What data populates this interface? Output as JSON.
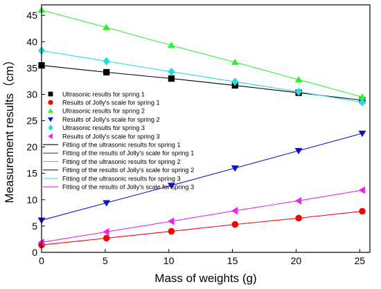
{
  "chart_data": {
    "type": "scatter",
    "title": "",
    "xlabel": "Mass of weights (g)",
    "ylabel": "Measurement results（cm）",
    "xlim": [
      0,
      25.8
    ],
    "ylim": [
      0,
      47
    ],
    "xticks": [
      0,
      5,
      10,
      15,
      20,
      25
    ],
    "yticks": [
      0,
      5,
      10,
      15,
      20,
      25,
      30,
      35,
      40,
      45
    ],
    "grid": false,
    "legend_position": "middle-left",
    "x": [
      0,
      5.1,
      10.2,
      15.2,
      20.2,
      25.2
    ],
    "series": [
      {
        "name": "Ultrasonic results for spring 1",
        "kind": "marker",
        "marker": "square",
        "color": "#000000",
        "values": [
          35.5,
          34.2,
          33.0,
          31.7,
          30.3,
          28.9
        ]
      },
      {
        "name": "Results of Jolly's scale  for spring 1",
        "kind": "marker",
        "marker": "circle",
        "color": "#ff0000",
        "values": [
          1.4,
          2.7,
          4.0,
          5.3,
          6.5,
          7.8
        ]
      },
      {
        "name": "Ultrasonic results for spring 2",
        "kind": "marker",
        "marker": "triangle-up",
        "color": "#33ee33",
        "values": [
          46.0,
          42.7,
          39.3,
          36.1,
          32.8,
          29.5
        ]
      },
      {
        "name": "Results of Jolly's scale  for spring 2",
        "kind": "marker",
        "marker": "triangle-down",
        "color": "#1010c8",
        "values": [
          6.1,
          9.4,
          12.7,
          16.0,
          19.3,
          22.6
        ]
      },
      {
        "name": "Ultrasonic results for spring 3",
        "kind": "marker",
        "marker": "diamond",
        "color": "#22dddd",
        "values": [
          38.3,
          36.3,
          34.3,
          32.4,
          30.5,
          28.5
        ]
      },
      {
        "name": "Results of Jolly's scale  for spring 3",
        "kind": "marker",
        "marker": "triangle-left",
        "color": "#ee22ee",
        "values": [
          1.9,
          3.9,
          5.9,
          7.9,
          9.8,
          11.8
        ]
      },
      {
        "name": "Fitting of the ultrasonic results for spring 1",
        "kind": "line",
        "color": "#000000",
        "values": [
          35.5,
          34.2,
          33.0,
          31.7,
          30.3,
          28.9
        ]
      },
      {
        "name": "Fitting of the results of Jolly's scale for spring 1",
        "kind": "line",
        "color": "#ff0000",
        "values": [
          1.4,
          2.7,
          4.0,
          5.3,
          6.5,
          7.8
        ]
      },
      {
        "name": "Fitting of the ultrasonic results for spring 2",
        "kind": "line",
        "color": "#33ee33",
        "values": [
          46.0,
          42.7,
          39.3,
          36.1,
          32.8,
          29.5
        ]
      },
      {
        "name": "Fitting of the results of Jolly's scale for spring 2",
        "kind": "line",
        "color": "#1010c8",
        "values": [
          6.1,
          9.4,
          12.7,
          16.0,
          19.3,
          22.6
        ]
      },
      {
        "name": "Fitting of the ultrasonic results for spring 3",
        "kind": "line",
        "color": "#22dddd",
        "values": [
          38.3,
          36.3,
          34.3,
          32.4,
          30.5,
          28.5
        ]
      },
      {
        "name": "Fitting of the results of Jolly's scale for spring 3",
        "kind": "line",
        "color": "#ee22ee",
        "values": [
          1.9,
          3.9,
          5.9,
          7.9,
          9.8,
          11.8
        ]
      }
    ]
  }
}
